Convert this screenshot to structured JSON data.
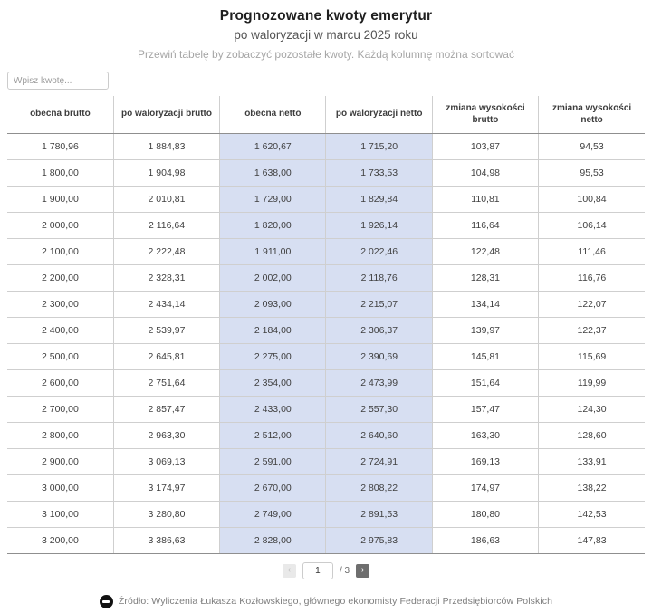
{
  "chart_data": {
    "type": "table",
    "title": "Prognozowane kwoty emerytur",
    "subtitle": "po waloryzacji w marcu 2025 roku",
    "columns": [
      "obecna brutto",
      "po waloryzacji brutto",
      "obecna netto",
      "po waloryzacji netto",
      "zmiana wysokości brutto",
      "zmiana wysokości netto"
    ],
    "highlighted_column_indexes": [
      2,
      3
    ],
    "rows": [
      [
        "1 780,96",
        "1 884,83",
        "1 620,67",
        "1 715,20",
        "103,87",
        "94,53"
      ],
      [
        "1 800,00",
        "1 904,98",
        "1 638,00",
        "1 733,53",
        "104,98",
        "95,53"
      ],
      [
        "1 900,00",
        "2 010,81",
        "1 729,00",
        "1 829,84",
        "110,81",
        "100,84"
      ],
      [
        "2 000,00",
        "2 116,64",
        "1 820,00",
        "1 926,14",
        "116,64",
        "106,14"
      ],
      [
        "2 100,00",
        "2 222,48",
        "1 911,00",
        "2 022,46",
        "122,48",
        "111,46"
      ],
      [
        "2 200,00",
        "2 328,31",
        "2 002,00",
        "2 118,76",
        "128,31",
        "116,76"
      ],
      [
        "2 300,00",
        "2 434,14",
        "2 093,00",
        "2 215,07",
        "134,14",
        "122,07"
      ],
      [
        "2 400,00",
        "2 539,97",
        "2 184,00",
        "2 306,37",
        "139,97",
        "122,37"
      ],
      [
        "2 500,00",
        "2 645,81",
        "2 275,00",
        "2 390,69",
        "145,81",
        "115,69"
      ],
      [
        "2 600,00",
        "2 751,64",
        "2 354,00",
        "2 473,99",
        "151,64",
        "119,99"
      ],
      [
        "2 700,00",
        "2 857,47",
        "2 433,00",
        "2 557,30",
        "157,47",
        "124,30"
      ],
      [
        "2 800,00",
        "2 963,30",
        "2 512,00",
        "2 640,60",
        "163,30",
        "128,60"
      ],
      [
        "2 900,00",
        "3 069,13",
        "2 591,00",
        "2 724,91",
        "169,13",
        "133,91"
      ],
      [
        "3 000,00",
        "3 174,97",
        "2 670,00",
        "2 808,22",
        "174,97",
        "138,22"
      ],
      [
        "3 100,00",
        "3 280,80",
        "2 749,00",
        "2 891,53",
        "180,80",
        "142,53"
      ],
      [
        "3 200,00",
        "3 386,63",
        "2 828,00",
        "2 975,83",
        "186,63",
        "147,83"
      ]
    ]
  },
  "hint": "Przewiń tabelę by zobaczyć pozostałe kwoty. Każdą kolumnę można sortować",
  "search": {
    "placeholder": "Wpisz kwotę..."
  },
  "pagination": {
    "prev_label": "‹",
    "page_value": "1",
    "total_label": "/ 3",
    "next_label": "›"
  },
  "footer": {
    "logo_icon": "flourish-logo",
    "source_text": "Źródło: Wyliczenia Łukasza Kozłowskiego, głównego ekonomisty Federacji Przedsiębiorców Polskich"
  },
  "colors": {
    "highlight_cell": "#d7dff2",
    "grid_line": "#cfcfcf",
    "strong_line": "#8f8f8f",
    "next_button": "#6e6e6e",
    "prev_button": "#e9e9e9"
  }
}
